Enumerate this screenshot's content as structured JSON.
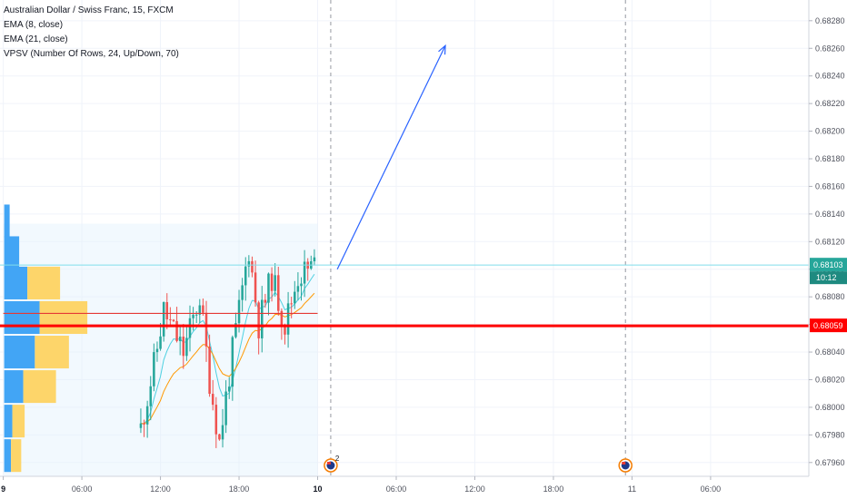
{
  "chart_data": {
    "type": "candlestick",
    "title": "Australian Dollar / Swiss Franc, 15, FXCM",
    "indicators": [
      "EMA (8, close)",
      "EMA (21, close)",
      "VPSV (Number Of Rows, 24, Up/Down, 70)"
    ],
    "y_axis": {
      "range": [
        0.6795,
        0.68295
      ],
      "ticks": [
        "0.68280",
        "0.68260",
        "0.68240",
        "0.68220",
        "0.68200",
        "0.68180",
        "0.68160",
        "0.68140",
        "0.68120",
        "0.68100",
        "0.68080",
        "0.68060",
        "0.68040",
        "0.68020",
        "0.68000",
        "0.67980",
        "0.67960"
      ]
    },
    "x_axis": {
      "ticks": [
        {
          "label": "9",
          "bold": true,
          "t": 0
        },
        {
          "label": "06:00",
          "t": 24
        },
        {
          "label": "12:00",
          "t": 48
        },
        {
          "label": "18:00",
          "t": 72
        },
        {
          "label": "10",
          "bold": true,
          "t": 96
        },
        {
          "label": "06:00",
          "t": 120
        },
        {
          "label": "12:00",
          "t": 144
        },
        {
          "label": "18:00",
          "t": 168
        },
        {
          "label": "11",
          "t": 192
        },
        {
          "label": "06:00",
          "t": 216
        }
      ],
      "range": [
        -1,
        246
      ]
    },
    "current_price": {
      "label": "0.68103",
      "value": 0.68103,
      "countdown": "10:12",
      "color": "#26a69a"
    },
    "support_line": {
      "label": "0.68059",
      "value": 0.68059,
      "color": "#ff0000"
    },
    "poc_line": {
      "value": 0.68068,
      "t_start": 0,
      "t_end": 96
    },
    "trend_arrow": {
      "from": {
        "t": 102,
        "price": 0.681
      },
      "to": {
        "t": 135,
        "price": 0.68262
      }
    },
    "event_markers": [
      {
        "t": 100,
        "badge": "2"
      },
      {
        "t": 190
      }
    ],
    "session_dividers": [
      100,
      190
    ],
    "colors": {
      "up": "#26a69a",
      "down": "#ef5350",
      "ema_fast": "#4dd0e1",
      "ema_slow": "#ff9800",
      "vp_up": "#42a5f5",
      "vp_down": "#fdd56a"
    },
    "candles_meta": {
      "start_t": 42,
      "end_t": 95,
      "start_price": 0.67985,
      "drift": [
        [
          42,
          0.67985
        ],
        [
          46,
          0.6803
        ],
        [
          49,
          0.6807
        ],
        [
          55,
          0.6804
        ],
        [
          60,
          0.6808
        ],
        [
          63,
          0.6802
        ],
        [
          66,
          0.67975
        ],
        [
          70,
          0.6804
        ],
        [
          75,
          0.68115
        ],
        [
          78,
          0.6806
        ],
        [
          82,
          0.68095
        ],
        [
          86,
          0.6806
        ],
        [
          90,
          0.68095
        ],
        [
          95,
          0.68103
        ]
      ],
      "seed": 11
    },
    "volume_profile": [
      {
        "price": 0.67965,
        "up": 10,
        "down": 15
      },
      {
        "price": 0.6799,
        "up": 12,
        "down": 18
      },
      {
        "price": 0.68015,
        "up": 28,
        "down": 48
      },
      {
        "price": 0.6804,
        "up": 45,
        "down": 50
      },
      {
        "price": 0.68065,
        "up": 52,
        "down": 70
      },
      {
        "price": 0.6809,
        "up": 34,
        "down": 48
      },
      {
        "price": 0.68112,
        "up": 22,
        "down": 0
      },
      {
        "price": 0.68135,
        "up": 8,
        "down": 0
      }
    ]
  }
}
